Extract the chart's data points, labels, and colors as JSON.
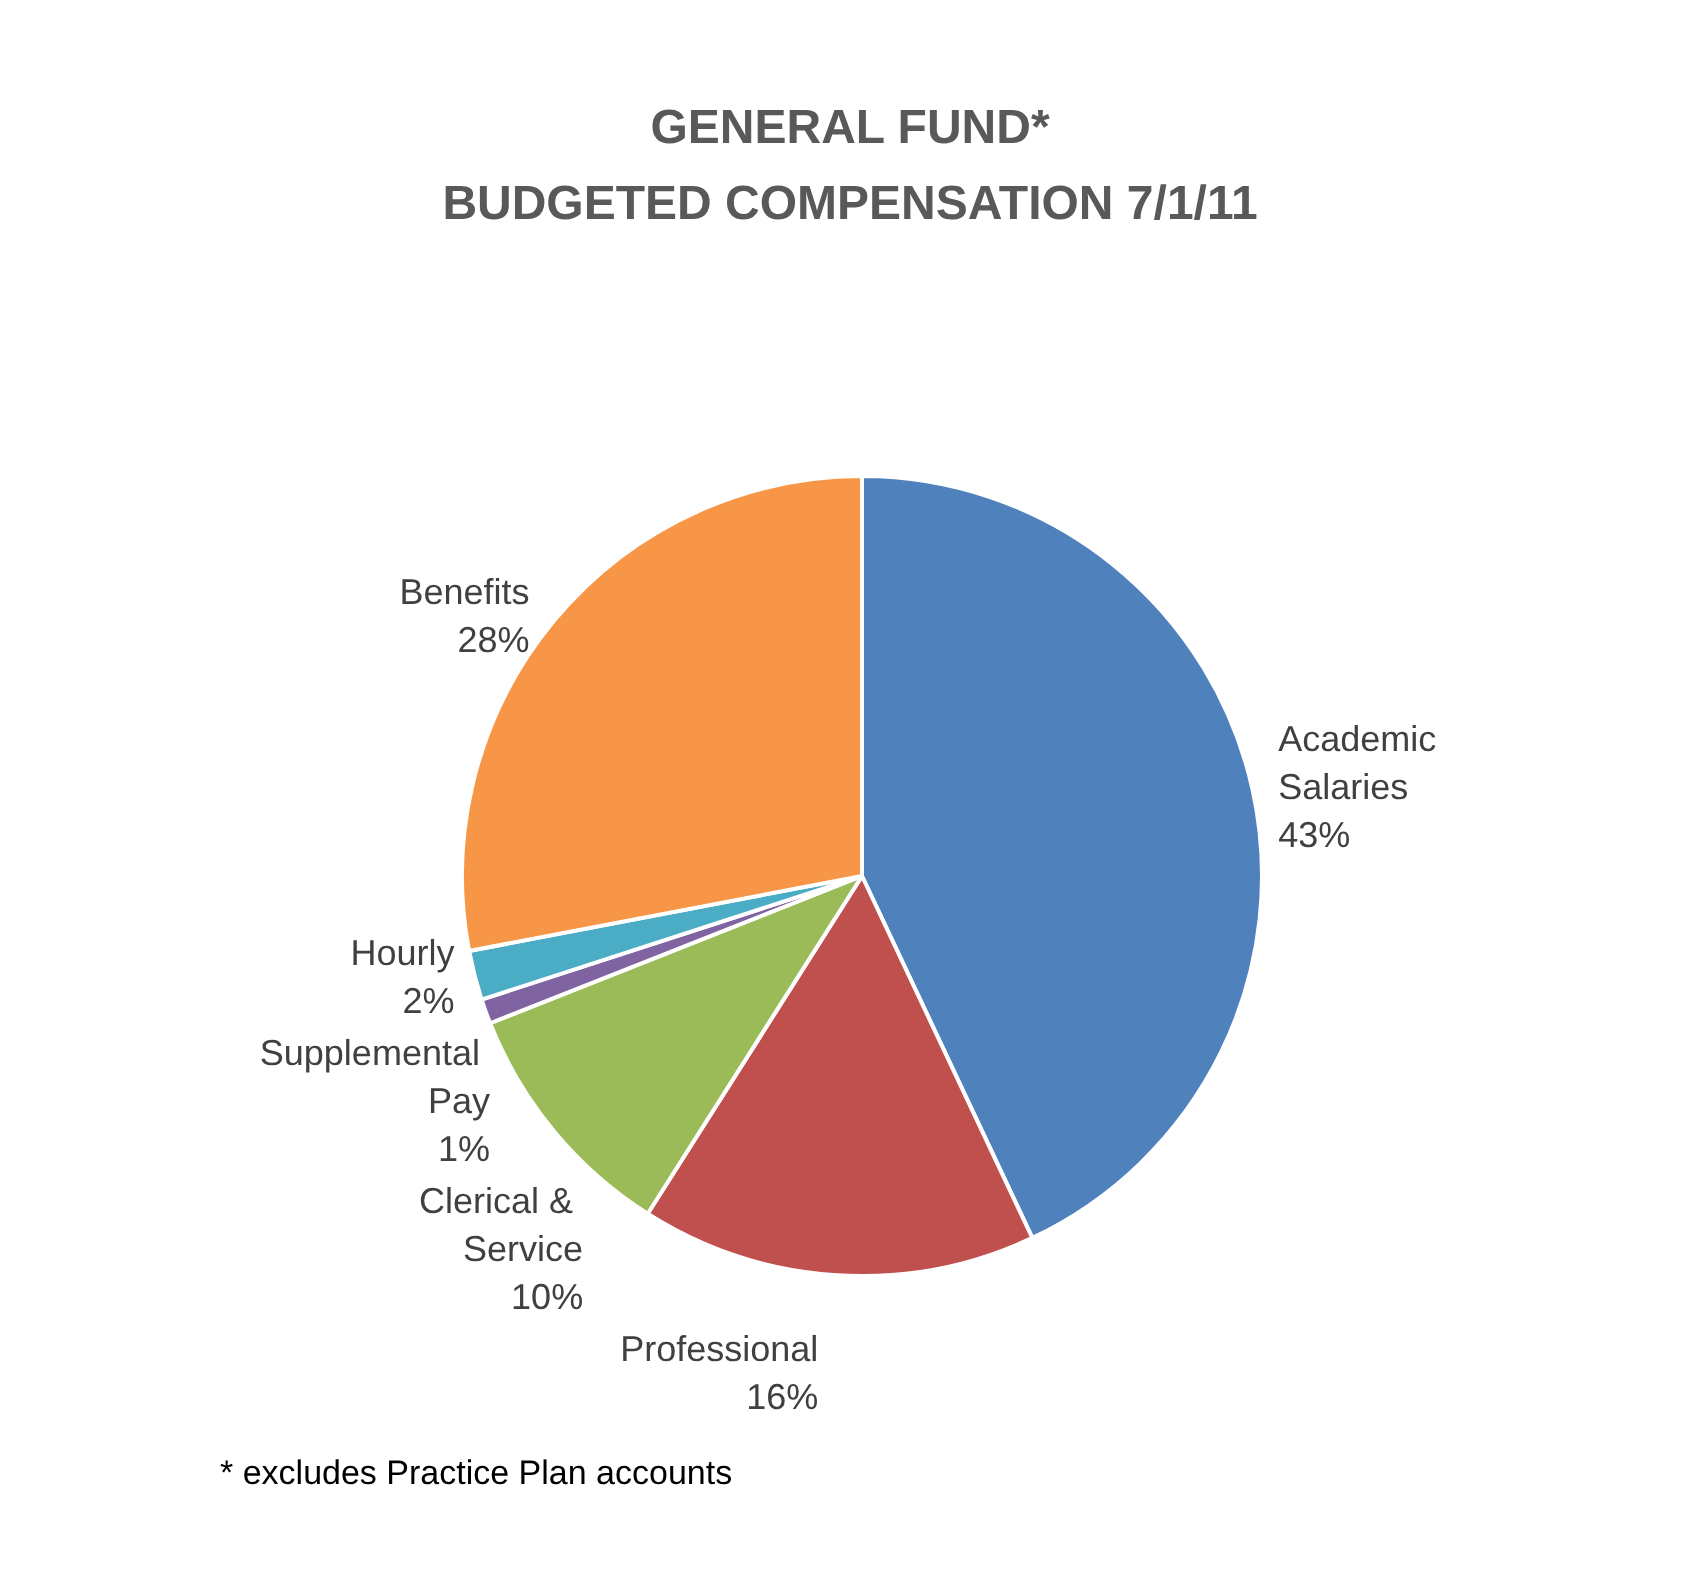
{
  "chart_data": {
    "type": "pie",
    "title": "GENERAL FUND*\nBUDGETED COMPENSATION 7/1/11",
    "categories": [
      "Academic Salaries",
      "Professional",
      "Clerical & Service",
      "Supplemental Pay",
      "Hourly",
      "Benefits"
    ],
    "values": [
      43,
      16,
      10,
      1,
      2,
      28
    ],
    "colors": [
      "#4f81bd",
      "#c0504d",
      "#9bbb59",
      "#8064a2",
      "#4bacc6",
      "#f79646"
    ],
    "value_labels": [
      "43%",
      "16%",
      "10%",
      "1%",
      "2%",
      "28%"
    ],
    "legend": false,
    "annotations": [
      "* excludes Practice Plan accounts"
    ]
  }
}
